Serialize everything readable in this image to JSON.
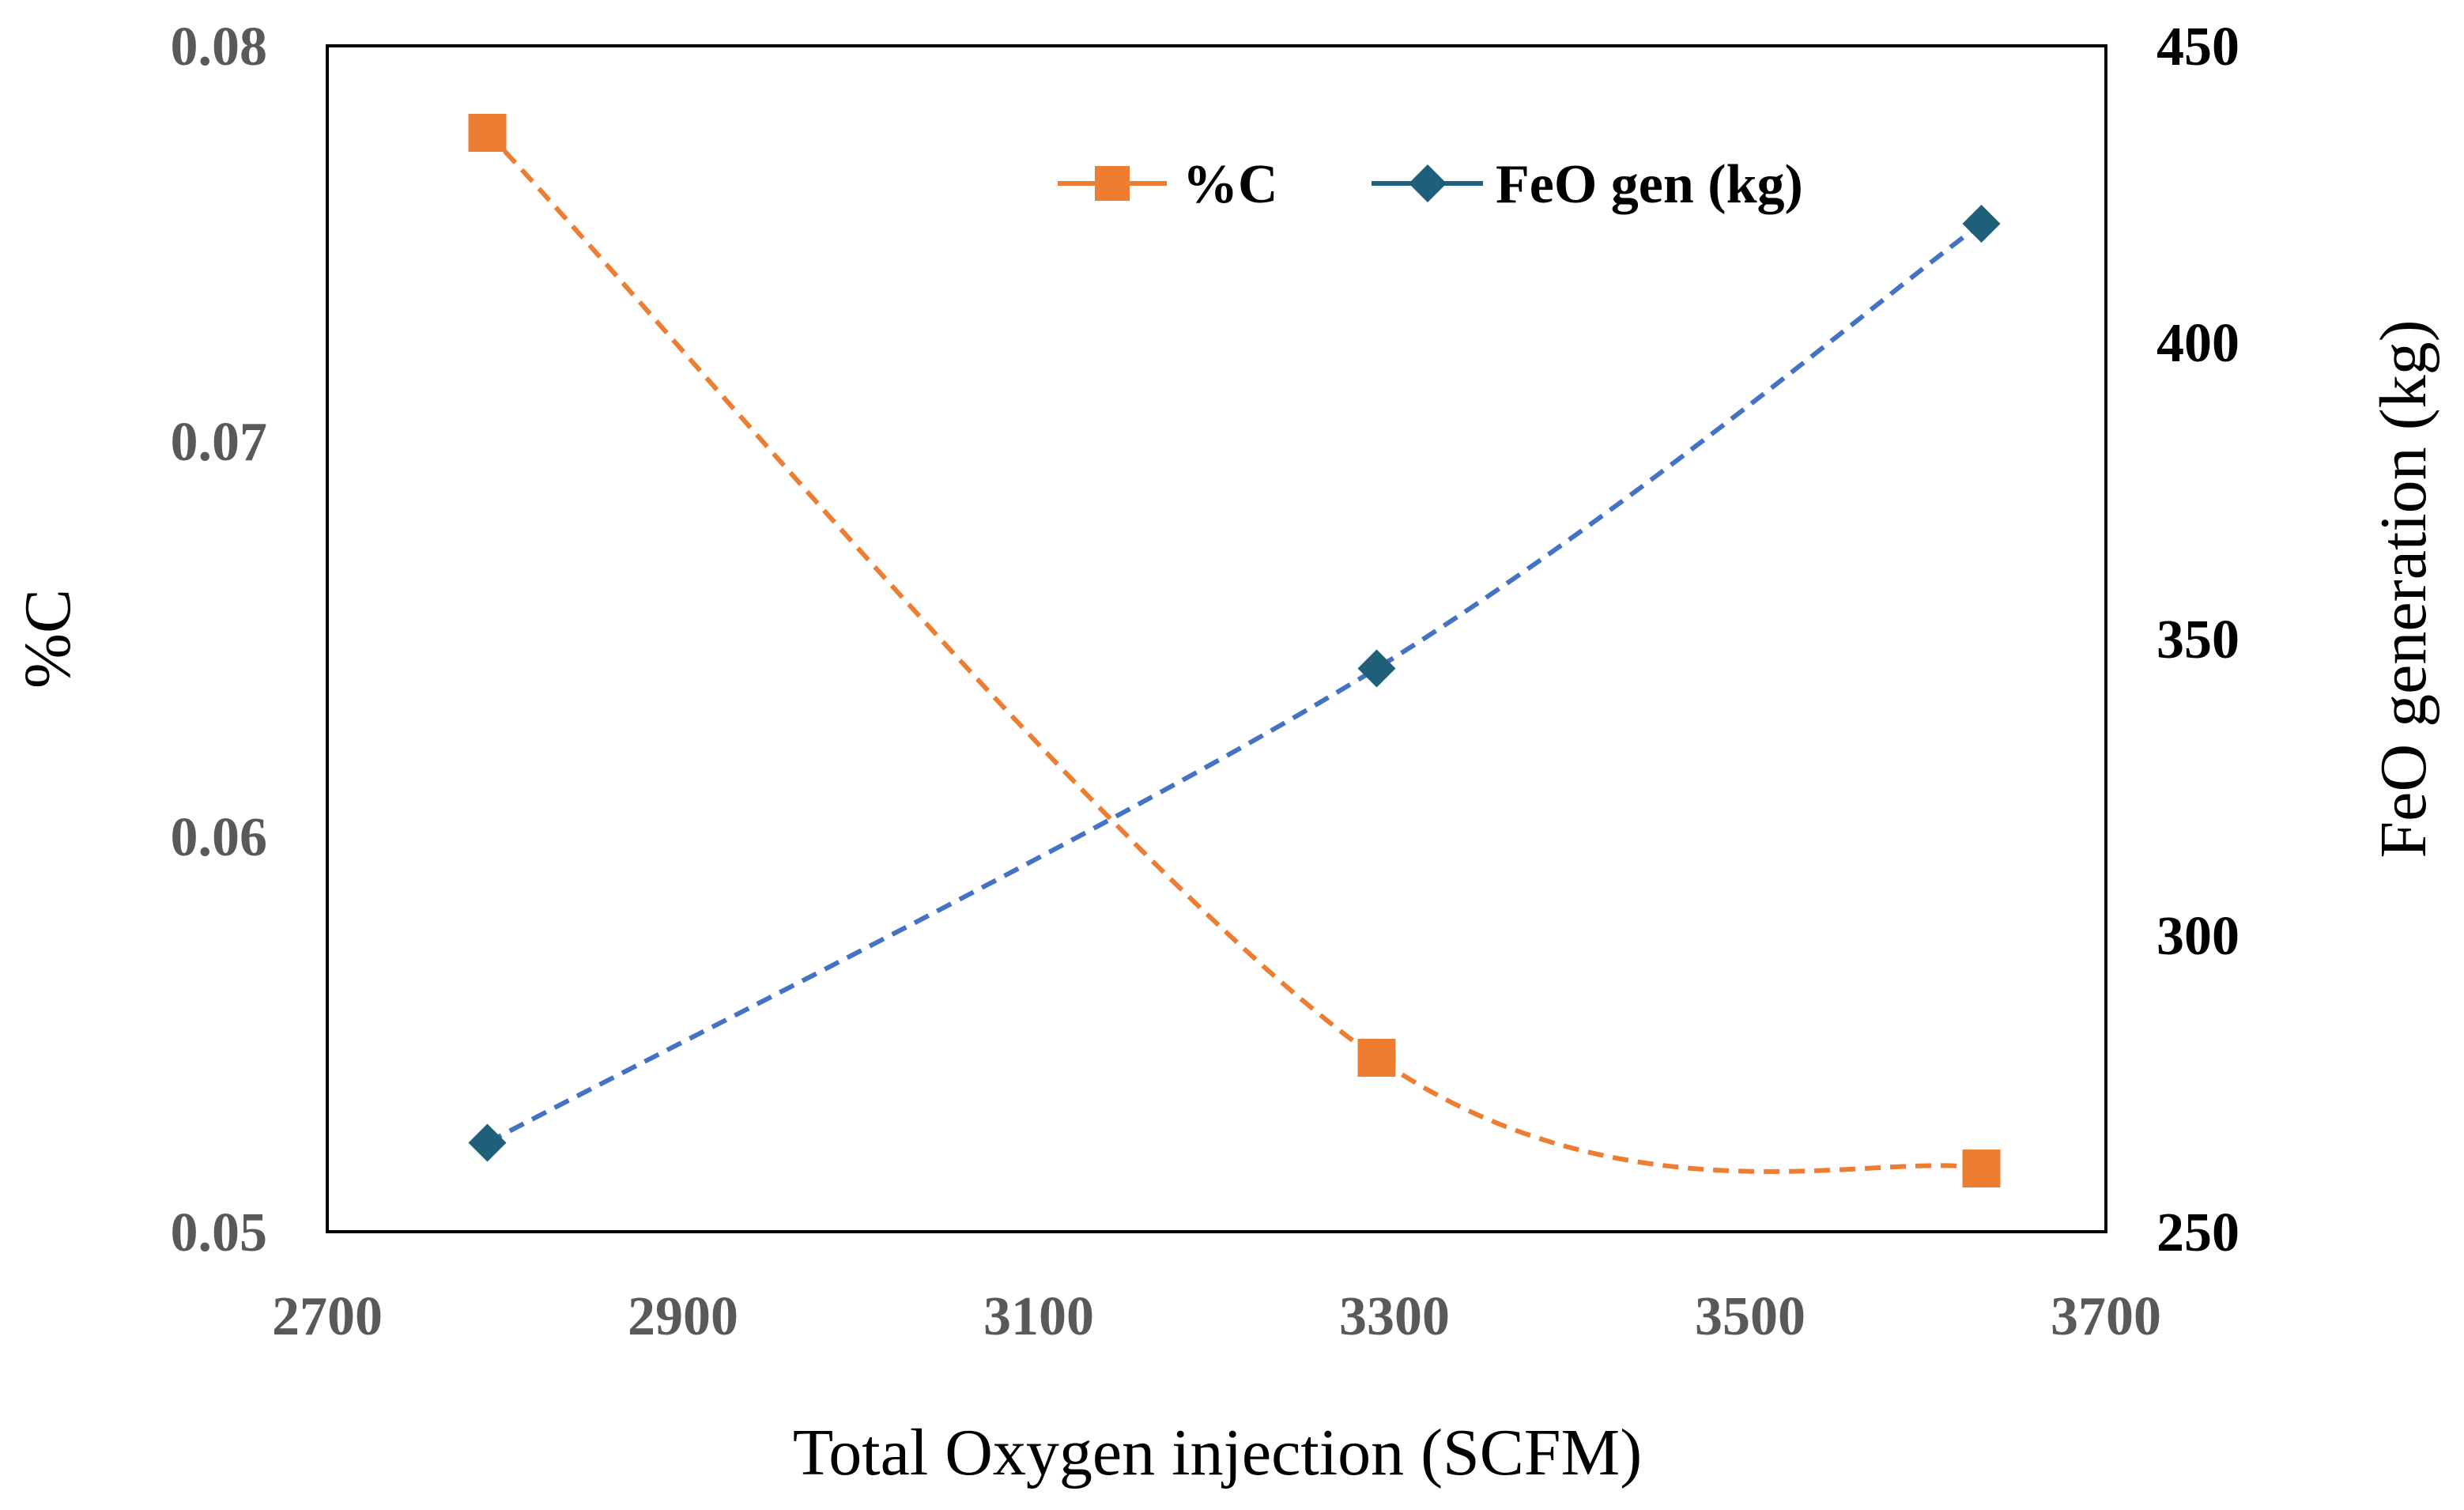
{
  "chart_data": {
    "type": "line",
    "title": "",
    "xlabel": "Total Oxygen injection (SCFM)",
    "ylabel": "%C",
    "y2label": "FeO generation (kg)",
    "xlim": [
      2700,
      3700
    ],
    "ylim": [
      0.05,
      0.08
    ],
    "y2lim": [
      250,
      450
    ],
    "x_ticks": [
      2700,
      2900,
      3100,
      3300,
      3500,
      3700
    ],
    "y_ticks": [
      0.05,
      0.06,
      0.07,
      0.08
    ],
    "y_tick_labels": [
      "0.05",
      "0.06",
      "0.07",
      "0.08"
    ],
    "y2_ticks": [
      250,
      300,
      350,
      400,
      450
    ],
    "grid": false,
    "legend_position": "top-right",
    "series": [
      {
        "name": "%C",
        "axis": "left",
        "marker": "square",
        "color": "#ED7D31",
        "line_color": "#ED7D31",
        "x": [
          2790,
          3290,
          3630
        ],
        "values": [
          0.0778,
          0.0544,
          0.0516
        ]
      },
      {
        "name": "FeO gen (kg)",
        "axis": "right",
        "marker": "diamond",
        "color": "#1F5F7A",
        "line_color": "#4472C4",
        "x": [
          2790,
          3290,
          3630
        ],
        "values": [
          265,
          345,
          420
        ]
      }
    ]
  }
}
